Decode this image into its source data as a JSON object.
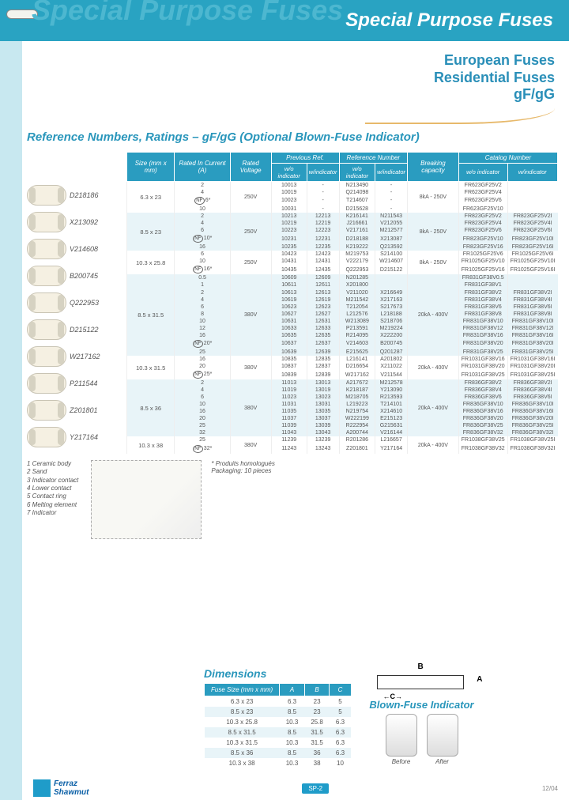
{
  "banner": {
    "ghost": "Special Purpose Fuses",
    "title": "Special Purpose Fuses"
  },
  "subhead": {
    "l1": "European Fuses",
    "l2": "Residential Fuses",
    "l3": "gF/gG"
  },
  "section_title": "Reference Numbers, Ratings – gF/gG (Optional Blown-Fuse Indicator)",
  "products": [
    {
      "label": "D218186"
    },
    {
      "label": "X213092"
    },
    {
      "label": "V214608"
    },
    {
      "label": "B200745"
    },
    {
      "label": "Q222953"
    },
    {
      "label": "D215122"
    },
    {
      "label": "W217162"
    },
    {
      "label": "P211544"
    },
    {
      "label": "Z201801"
    },
    {
      "label": "Y217164"
    }
  ],
  "table": {
    "head_groups": {
      "size": "Size\n(mm x mm)",
      "rated_in": "Rated In\nCurrent (A)",
      "rated_v": "Rated\nVoltage",
      "prev": "Previous Ref.",
      "ref": "Reference Number",
      "break": "Breaking\ncapacity",
      "cat": "Catalog Number",
      "sub_wo": "w/o indicator",
      "sub_w": "w/indicator"
    },
    "blocks": [
      {
        "band": 0,
        "size": "6.3 x 23",
        "voltage": "250V",
        "break": "8kA - 250V",
        "rows": [
          {
            "cur": "2",
            "p1": "10013",
            "p2": "-",
            "r1": "N213490",
            "r2": "-",
            "c1": "FR623GF25V2",
            "c2": ""
          },
          {
            "cur": "4",
            "p1": "10019",
            "p2": "-",
            "r1": "Q214098",
            "r2": "-",
            "c1": "FR623GF25V4",
            "c2": ""
          },
          {
            "cur": "6*",
            "nf": true,
            "p1": "10023",
            "p2": "-",
            "r1": "T214607",
            "r2": "-",
            "c1": "FR623GF25V6",
            "c2": ""
          },
          {
            "cur": "10",
            "p1": "10031",
            "p2": "-",
            "r1": "D215628",
            "r2": "-",
            "c1": "FR623GF25V10",
            "c2": ""
          }
        ]
      },
      {
        "band": 1,
        "size": "8.5 x 23",
        "voltage": "250V",
        "break": "8kA - 250V",
        "rows": [
          {
            "cur": "2",
            "p1": "10213",
            "p2": "12213",
            "r1": "K216141",
            "r2": "N211543",
            "c1": "FR823GF25V2",
            "c2": "FR823GF25V2I"
          },
          {
            "cur": "4",
            "p1": "10219",
            "p2": "12219",
            "r1": "J216661",
            "r2": "V212055",
            "c1": "FR823GF25V4",
            "c2": "FR823GF25V4I"
          },
          {
            "cur": "6",
            "p1": "10223",
            "p2": "12223",
            "r1": "V217161",
            "r2": "M212577",
            "c1": "FR823GF25V6",
            "c2": "FR823GF25V6I"
          },
          {
            "cur": "10*",
            "nf": true,
            "p1": "10231",
            "p2": "12231",
            "r1": "D218188",
            "r2": "X213087",
            "c1": "FR823GF25V10",
            "c2": "FR823GF25V10I"
          },
          {
            "cur": "16",
            "p1": "10235",
            "p2": "12235",
            "r1": "K219222",
            "r2": "Q213592",
            "c1": "FR823GF25V16",
            "c2": "FR823GF25V16I"
          }
        ]
      },
      {
        "band": 0,
        "size": "10.3 x 25.8",
        "voltage": "250V",
        "break": "8kA - 250V",
        "rows": [
          {
            "cur": "6",
            "p1": "10423",
            "p2": "12423",
            "r1": "M219753",
            "r2": "S214100",
            "c1": "FR1025GF25V6",
            "c2": "FR1025GF25V6I"
          },
          {
            "cur": "10",
            "p1": "10431",
            "p2": "12431",
            "r1": "V222179",
            "r2": "W214607",
            "c1": "FR1025GF25V10",
            "c2": "FR1025GF25V10I"
          },
          {
            "cur": "16*",
            "nf": true,
            "p1": "10435",
            "p2": "12435",
            "r1": "Q222953",
            "r2": "D215122",
            "c1": "FR1025GF25V16",
            "c2": "FR1025GF25V16I"
          }
        ]
      },
      {
        "band": 1,
        "size": "8.5 x 31.5",
        "voltage": "380V",
        "break": "20kA - 400V",
        "rows": [
          {
            "cur": "0.5",
            "p1": "10609",
            "p2": "12609",
            "r1": "N201285",
            "r2": "",
            "c1": "FR831GF38V0.5",
            "c2": ""
          },
          {
            "cur": "1",
            "p1": "10611",
            "p2": "12611",
            "r1": "X201800",
            "r2": "",
            "c1": "FR831GF38V1",
            "c2": ""
          },
          {
            "cur": "2",
            "p1": "10613",
            "p2": "12613",
            "r1": "V211020",
            "r2": "X216649",
            "c1": "FR831GF38V2",
            "c2": "FR831GF38V2I"
          },
          {
            "cur": "4",
            "p1": "10619",
            "p2": "12619",
            "r1": "M211542",
            "r2": "X217163",
            "c1": "FR831GF38V4",
            "c2": "FR831GF38V4I"
          },
          {
            "cur": "6",
            "p1": "10623",
            "p2": "12623",
            "r1": "T212054",
            "r2": "S217673",
            "c1": "FR831GF38V6",
            "c2": "FR831GF38V6I"
          },
          {
            "cur": "8",
            "p1": "10627",
            "p2": "12627",
            "r1": "L212576",
            "r2": "L218188",
            "c1": "FR831GF38V8",
            "c2": "FR831GF38V8I"
          },
          {
            "cur": "10",
            "p1": "10631",
            "p2": "12631",
            "r1": "W213089",
            "r2": "S218706",
            "c1": "FR831GF38V10",
            "c2": "FR831GF38V10I"
          },
          {
            "cur": "12",
            "p1": "10633",
            "p2": "12633",
            "r1": "P213591",
            "r2": "M219224",
            "c1": "FR831GF38V12",
            "c2": "FR831GF38V12I"
          },
          {
            "cur": "16",
            "p1": "10635",
            "p2": "12635",
            "r1": "R214095",
            "r2": "X222200",
            "c1": "FR831GF38V16",
            "c2": "FR831GF38V16I"
          },
          {
            "cur": "20*",
            "nf": true,
            "p1": "10637",
            "p2": "12637",
            "r1": "V214603",
            "r2": "B200745",
            "c1": "FR831GF38V20",
            "c2": "FR831GF38V20I"
          },
          {
            "cur": "25",
            "p1": "10639",
            "p2": "12639",
            "r1": "E215625",
            "r2": "Q201287",
            "c1": "FR831GF38V25",
            "c2": "FR831GF38V25I"
          }
        ]
      },
      {
        "band": 0,
        "size": "10.3 x 31.5",
        "voltage": "380V",
        "break": "20kA - 400V",
        "rows": [
          {
            "cur": "16",
            "p1": "10835",
            "p2": "12835",
            "r1": "L216141",
            "r2": "A201802",
            "c1": "FR1031GF38V16",
            "c2": "FR1031GF38V16I"
          },
          {
            "cur": "20",
            "p1": "10837",
            "p2": "12837",
            "r1": "D216654",
            "r2": "X211022",
            "c1": "FR1031GF38V20",
            "c2": "FR1031GF38V20I"
          },
          {
            "cur": "25*",
            "nf": true,
            "p1": "10839",
            "p2": "12839",
            "r1": "W217162",
            "r2": "V211544",
            "c1": "FR1031GF38V25",
            "c2": "FR1031GF38V25I"
          }
        ]
      },
      {
        "band": 1,
        "size": "8.5 x 36",
        "voltage": "380V",
        "break": "20kA - 400V",
        "rows": [
          {
            "cur": "2",
            "p1": "11013",
            "p2": "13013",
            "r1": "A217672",
            "r2": "M212578",
            "c1": "FR836GF38V2",
            "c2": "FR836GF38V2I"
          },
          {
            "cur": "4",
            "p1": "11019",
            "p2": "13019",
            "r1": "K218187",
            "r2": "Y213090",
            "c1": "FR836GF38V4",
            "c2": "FR836GF38V4I"
          },
          {
            "cur": "6",
            "p1": "11023",
            "p2": "13023",
            "r1": "M218705",
            "r2": "R213593",
            "c1": "FR836GF38V6",
            "c2": "FR836GF38V6I"
          },
          {
            "cur": "10",
            "p1": "11031",
            "p2": "13031",
            "r1": "L219223",
            "r2": "T214101",
            "c1": "FR836GF38V10",
            "c2": "FR836GF38V10I"
          },
          {
            "cur": "16",
            "p1": "11035",
            "p2": "13035",
            "r1": "N219754",
            "r2": "X214610",
            "c1": "FR836GF38V16",
            "c2": "FR836GF38V16I"
          },
          {
            "cur": "20",
            "p1": "11037",
            "p2": "13037",
            "r1": "W222199",
            "r2": "E215123",
            "c1": "FR836GF38V20",
            "c2": "FR836GF38V20I"
          },
          {
            "cur": "25",
            "p1": "11039",
            "p2": "13039",
            "r1": "R222954",
            "r2": "G215631",
            "c1": "FR836GF38V25",
            "c2": "FR836GF38V25I"
          },
          {
            "cur": "32",
            "p1": "11043",
            "p2": "13043",
            "r1": "A200744",
            "r2": "V216144",
            "c1": "FR836GF38V32",
            "c2": "FR836GF38V32I"
          }
        ]
      },
      {
        "band": 0,
        "size": "10.3 x 38",
        "voltage": "380V",
        "break": "20kA - 400V",
        "rows": [
          {
            "cur": "25",
            "p1": "11239",
            "p2": "13239",
            "r1": "R201286",
            "r2": "L216657",
            "c1": "FR1038GF38V25",
            "c2": "FR1038GF38V25I"
          },
          {
            "cur": "32*",
            "nf": true,
            "p1": "11243",
            "p2": "13243",
            "r1": "Z201801",
            "r2": "Y217164",
            "c1": "FR1038GF38V32",
            "c2": "FR1038GF38V32I"
          }
        ]
      }
    ]
  },
  "legend": [
    "1  Ceramic body",
    "2  Sand",
    "3  Indicator contact",
    "4  Lower contact",
    "5  Contact ring",
    "6  Melting element",
    "7  Indicator"
  ],
  "notes": {
    "star": "* Produits homologués",
    "pack": "Packaging: 10 pieces"
  },
  "dimensions": {
    "title": "Dimensions",
    "head": {
      "fs": "Fuse Size\n(mm x mm)",
      "a": "A",
      "b": "B",
      "c": "C"
    },
    "rows": [
      {
        "fs": "6.3 x 23",
        "a": "6.3",
        "b": "23",
        "c": "5"
      },
      {
        "fs": "8.5 x 23",
        "a": "8.5",
        "b": "23",
        "c": "5"
      },
      {
        "fs": "10.3 x 25.8",
        "a": "10.3",
        "b": "25.8",
        "c": "6.3"
      },
      {
        "fs": "8.5 x 31.5",
        "a": "8.5",
        "b": "31.5",
        "c": "6.3"
      },
      {
        "fs": "10.3 x 31.5",
        "a": "10.3",
        "b": "31.5",
        "c": "6.3"
      },
      {
        "fs": "8.5 x 36",
        "a": "8.5",
        "b": "36",
        "c": "6.3"
      },
      {
        "fs": "10.3 x 38",
        "a": "10.3",
        "b": "38",
        "c": "10"
      }
    ]
  },
  "blown": {
    "title": "Blown-Fuse Indicator",
    "before": "Before",
    "after": "After"
  },
  "footer": {
    "brand1": "Ferraz",
    "brand2": "Shawmut",
    "page": "SP-2",
    "date": "12/04"
  },
  "colors": {
    "teal": "#29a3c2",
    "head_blue": "#2996bb",
    "band": "#e8f4f8"
  }
}
